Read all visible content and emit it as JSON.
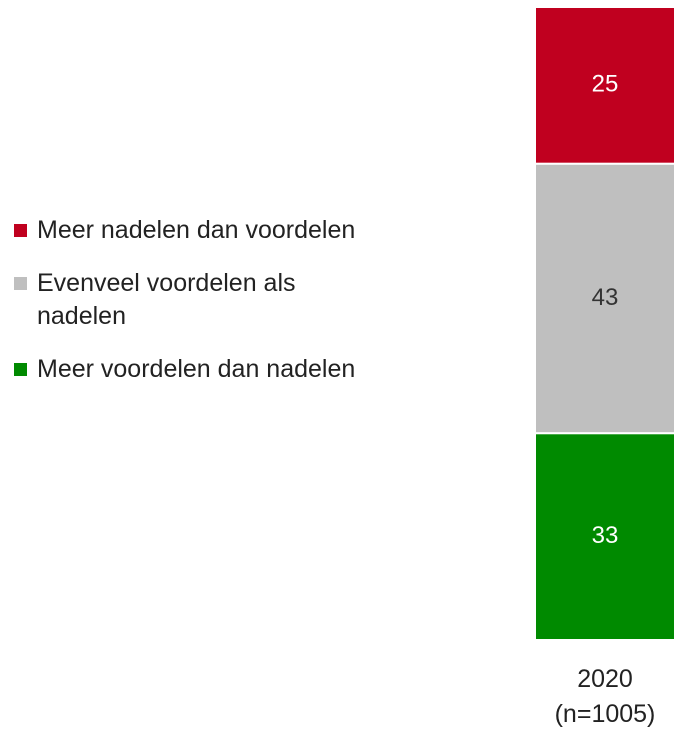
{
  "chart_data": {
    "type": "stacked-bar",
    "categories": [
      "2020\n(n=1005)"
    ],
    "series": [
      {
        "name": "Meer nadelen dan voordelen",
        "color": "#c0001f",
        "values": [
          25
        ]
      },
      {
        "name": "Evenveel voordelen als nadelen",
        "color": "#bfbfbf",
        "values": [
          43
        ]
      },
      {
        "name": "Meer voordelen dan nadelen",
        "color": "#008a00",
        "values": [
          33
        ]
      }
    ]
  }
}
